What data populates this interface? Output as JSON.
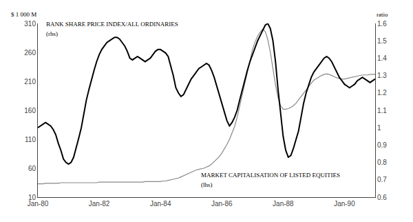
{
  "chart_data": {
    "type": "line",
    "ylabel": "$ 1 000 M",
    "y2label": "ratio",
    "annotations": [
      "BANK SHARE PRICE INDEX/ALL ORDINARIES",
      "(rhs)",
      "MARKET CAPITALISATION OF LISTED EQUITIES",
      "(lhs)"
    ],
    "x": [
      0,
      1,
      2,
      3,
      4,
      5,
      6,
      7,
      8,
      9,
      10,
      11,
      12,
      13,
      14,
      15,
      16,
      17,
      18,
      19,
      20,
      21,
      22,
      23,
      24,
      25,
      26,
      27,
      28,
      29,
      30,
      31,
      32,
      33,
      34,
      35,
      36,
      37,
      38,
      39,
      40,
      41,
      42,
      43,
      44,
      45,
      46,
      47,
      48,
      49,
      50,
      51,
      52,
      53,
      54,
      55,
      56,
      57,
      58,
      59,
      60,
      61,
      62,
      63,
      64,
      65,
      66,
      67,
      68,
      69,
      70,
      71,
      72,
      73,
      74,
      75,
      76,
      77,
      78,
      79,
      80,
      81,
      82,
      83,
      84,
      85,
      86,
      87,
      88,
      89,
      90,
      91,
      92,
      93,
      94,
      95,
      96,
      97,
      98,
      99,
      100,
      101,
      102,
      103,
      104,
      105,
      106,
      107,
      108,
      109,
      110,
      111,
      112,
      113,
      114,
      115,
      116,
      117,
      118,
      119,
      120,
      121,
      122,
      123,
      124,
      125,
      126,
      127,
      128,
      129,
      130,
      131,
      132
    ],
    "series": [
      {
        "color": "#888888",
        "values": [
          33,
          33,
          33,
          34,
          34,
          34,
          34,
          34,
          34,
          35,
          35,
          35,
          35,
          35,
          35,
          35,
          35,
          35,
          35,
          35,
          35,
          35,
          35,
          35,
          36,
          36,
          36,
          36,
          36,
          36,
          36,
          36,
          36,
          36,
          36,
          36,
          36,
          36,
          36,
          36,
          36,
          36,
          37,
          37,
          37,
          37,
          37,
          37,
          37,
          38,
          38,
          39,
          40,
          41,
          42,
          43,
          45,
          47,
          49,
          51,
          53,
          55,
          57,
          58,
          59,
          60,
          62,
          64,
          67,
          71,
          75,
          80,
          86,
          93,
          101,
          110,
          120,
          132,
          148,
          168,
          188,
          208,
          228,
          248,
          265,
          278,
          288,
          295,
          300,
          296,
          282,
          260,
          232,
          204,
          182,
          168,
          162,
          162,
          163,
          165,
          168,
          172,
          178,
          184,
          190,
          196,
          202,
          207,
          212,
          215,
          218,
          220,
          222,
          223,
          222,
          220,
          218,
          216,
          215,
          214,
          214,
          215,
          216,
          217,
          218,
          219,
          220,
          221,
          221,
          221,
          222,
          222,
          222
        ]
      },
      {
        "color": "#000000",
        "axis": "y2",
        "values": [
          1.0,
          1.01,
          1.02,
          1.03,
          1.02,
          1.01,
          0.99,
          0.96,
          0.91,
          0.87,
          0.82,
          0.8,
          0.79,
          0.8,
          0.83,
          0.88,
          0.94,
          1.0,
          1.08,
          1.16,
          1.22,
          1.28,
          1.33,
          1.38,
          1.42,
          1.45,
          1.47,
          1.49,
          1.5,
          1.51,
          1.52,
          1.52,
          1.51,
          1.49,
          1.47,
          1.44,
          1.4,
          1.39,
          1.4,
          1.41,
          1.4,
          1.39,
          1.38,
          1.39,
          1.4,
          1.42,
          1.44,
          1.45,
          1.45,
          1.44,
          1.43,
          1.41,
          1.36,
          1.3,
          1.23,
          1.2,
          1.18,
          1.19,
          1.22,
          1.25,
          1.28,
          1.3,
          1.32,
          1.34,
          1.35,
          1.36,
          1.37,
          1.36,
          1.33,
          1.29,
          1.24,
          1.2,
          1.14,
          1.09,
          1.04,
          1.01,
          1.03,
          1.06,
          1.1,
          1.16,
          1.22,
          1.28,
          1.33,
          1.38,
          1.42,
          1.46,
          1.5,
          1.53,
          1.56,
          1.59,
          1.6,
          1.57,
          1.5,
          1.38,
          1.22,
          1.08,
          0.95,
          0.87,
          0.83,
          0.84,
          0.88,
          0.93,
          0.98,
          1.06,
          1.14,
          1.2,
          1.25,
          1.29,
          1.32,
          1.34,
          1.36,
          1.38,
          1.4,
          1.41,
          1.4,
          1.38,
          1.35,
          1.32,
          1.29,
          1.27,
          1.25,
          1.24,
          1.23,
          1.24,
          1.25,
          1.27,
          1.28,
          1.29,
          1.28,
          1.27,
          1.26,
          1.27,
          1.28
        ]
      }
    ],
    "xlim": [
      0,
      132
    ],
    "xticks": [
      {
        "value": 0,
        "label": "Jan-80"
      },
      {
        "value": 24,
        "label": "Jan-82"
      },
      {
        "value": 48,
        "label": "Jan-84"
      },
      {
        "value": 72,
        "label": "Jan-86"
      },
      {
        "value": 96,
        "label": "Jan-88"
      },
      {
        "value": 120,
        "label": "Jan-90"
      }
    ],
    "ylim": [
      10,
      310
    ],
    "yticks": [
      10,
      60,
      110,
      160,
      210,
      260,
      310
    ],
    "y2lim": [
      0.6,
      1.6
    ],
    "y2ticks": [
      0.6,
      0.7,
      0.8,
      0.9,
      1,
      1.1,
      1.2,
      1.3,
      1.4,
      1.5,
      1.6
    ],
    "grid": false
  }
}
